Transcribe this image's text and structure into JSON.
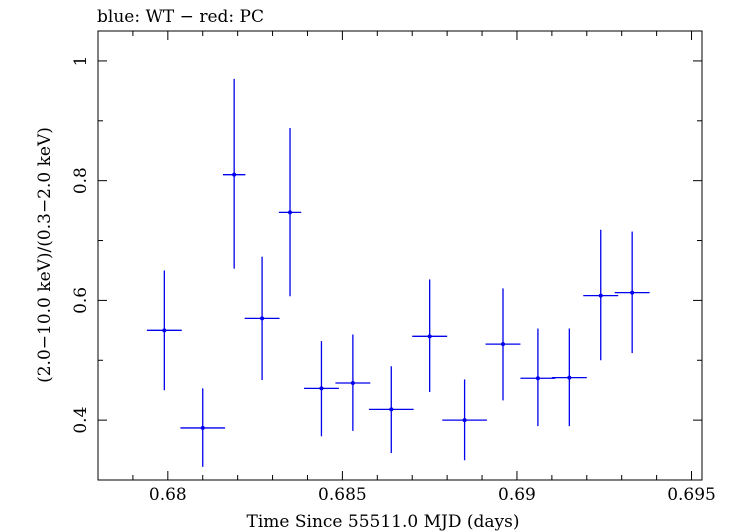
{
  "chart_data": {
    "type": "scatter",
    "title": "blue: WT − red: PC",
    "xlabel": "Time Since 55511.0 MJD (days)",
    "ylabel": "(2.0−10.0 keV)/(0.3−2.0 keV)",
    "xlim": [
      0.678,
      0.6953
    ],
    "ylim": [
      0.3,
      1.05
    ],
    "x_ticks": [
      0.68,
      0.685,
      0.69,
      0.695
    ],
    "x_tick_labels": [
      "0.68",
      "0.685",
      "0.69",
      "0.695"
    ],
    "y_ticks": [
      0.4,
      0.6,
      0.8,
      1.0
    ],
    "y_tick_labels": [
      "0.4",
      "0.6",
      "0.8",
      "1"
    ],
    "series": [
      {
        "name": "WT",
        "color": "#0000ee",
        "points": [
          {
            "x": 0.6799,
            "y": 0.55,
            "xerr": 0.0005,
            "ylo": 0.45,
            "yhi": 0.65
          },
          {
            "x": 0.681,
            "y": 0.387,
            "xerr": 0.00064,
            "ylo": 0.322,
            "yhi": 0.453
          },
          {
            "x": 0.6819,
            "y": 0.81,
            "xerr": 0.00032,
            "ylo": 0.653,
            "yhi": 0.97
          },
          {
            "x": 0.6827,
            "y": 0.57,
            "xerr": 0.0005,
            "ylo": 0.467,
            "yhi": 0.673
          },
          {
            "x": 0.6835,
            "y": 0.747,
            "xerr": 0.00032,
            "ylo": 0.607,
            "yhi": 0.888
          },
          {
            "x": 0.6844,
            "y": 0.453,
            "xerr": 0.0005,
            "ylo": 0.373,
            "yhi": 0.532
          },
          {
            "x": 0.6853,
            "y": 0.462,
            "xerr": 0.0005,
            "ylo": 0.382,
            "yhi": 0.543
          },
          {
            "x": 0.6864,
            "y": 0.418,
            "xerr": 0.00064,
            "ylo": 0.345,
            "yhi": 0.49
          },
          {
            "x": 0.6875,
            "y": 0.54,
            "xerr": 0.0005,
            "ylo": 0.447,
            "yhi": 0.635
          },
          {
            "x": 0.6885,
            "y": 0.4,
            "xerr": 0.00064,
            "ylo": 0.333,
            "yhi": 0.468
          },
          {
            "x": 0.6896,
            "y": 0.527,
            "xerr": 0.0005,
            "ylo": 0.433,
            "yhi": 0.62
          },
          {
            "x": 0.6906,
            "y": 0.47,
            "xerr": 0.0005,
            "ylo": 0.39,
            "yhi": 0.553
          },
          {
            "x": 0.6915,
            "y": 0.471,
            "xerr": 0.0005,
            "ylo": 0.39,
            "yhi": 0.553
          },
          {
            "x": 0.6924,
            "y": 0.608,
            "xerr": 0.0005,
            "ylo": 0.5,
            "yhi": 0.718
          },
          {
            "x": 0.6933,
            "y": 0.613,
            "xerr": 0.0005,
            "ylo": 0.512,
            "yhi": 0.715
          }
        ]
      }
    ]
  }
}
